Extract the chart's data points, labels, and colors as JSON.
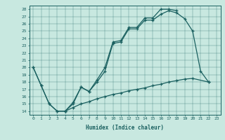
{
  "xlabel": "Humidex (Indice chaleur)",
  "bg_color": "#c8e8e0",
  "line_color": "#1a6060",
  "xlim": [
    -0.5,
    23.5
  ],
  "ylim": [
    13.5,
    28.5
  ],
  "xticks": [
    0,
    1,
    2,
    3,
    4,
    5,
    6,
    7,
    8,
    9,
    10,
    11,
    12,
    13,
    14,
    15,
    16,
    17,
    18,
    19,
    20,
    21,
    22,
    23
  ],
  "yticks": [
    14,
    15,
    16,
    17,
    18,
    19,
    20,
    21,
    22,
    23,
    24,
    25,
    26,
    27,
    28
  ],
  "line1_x": [
    0,
    1,
    2,
    3,
    4,
    5,
    6,
    7,
    8,
    9,
    10,
    11,
    12,
    13,
    14,
    15,
    16,
    17,
    18,
    19,
    20,
    21,
    22
  ],
  "line1_y": [
    20,
    17.5,
    15,
    14,
    14,
    15,
    17.3,
    16.7,
    18,
    19.5,
    23.3,
    23.5,
    25.3,
    25.3,
    26.5,
    26.5,
    27.3,
    27.8,
    27.5,
    26.7,
    25,
    19.5,
    18
  ],
  "line2_x": [
    0,
    1,
    2,
    3,
    4,
    5,
    6,
    7,
    8,
    9,
    10,
    11,
    12,
    13,
    14,
    15,
    16,
    17,
    18
  ],
  "line2_y": [
    20,
    17.5,
    15,
    14,
    14,
    15.2,
    17.3,
    16.7,
    18.3,
    20,
    23.5,
    23.7,
    25.5,
    25.5,
    26.8,
    26.8,
    28,
    28,
    27.8
  ],
  "line3_x": [
    4,
    5,
    6,
    7,
    8,
    9,
    10,
    11,
    12,
    13,
    14,
    15,
    16,
    17,
    18,
    19,
    20,
    22
  ],
  "line3_y": [
    14,
    14.5,
    15,
    15.3,
    15.7,
    16,
    16.3,
    16.5,
    16.8,
    17,
    17.2,
    17.5,
    17.7,
    18,
    18.2,
    18.4,
    18.5,
    18
  ]
}
